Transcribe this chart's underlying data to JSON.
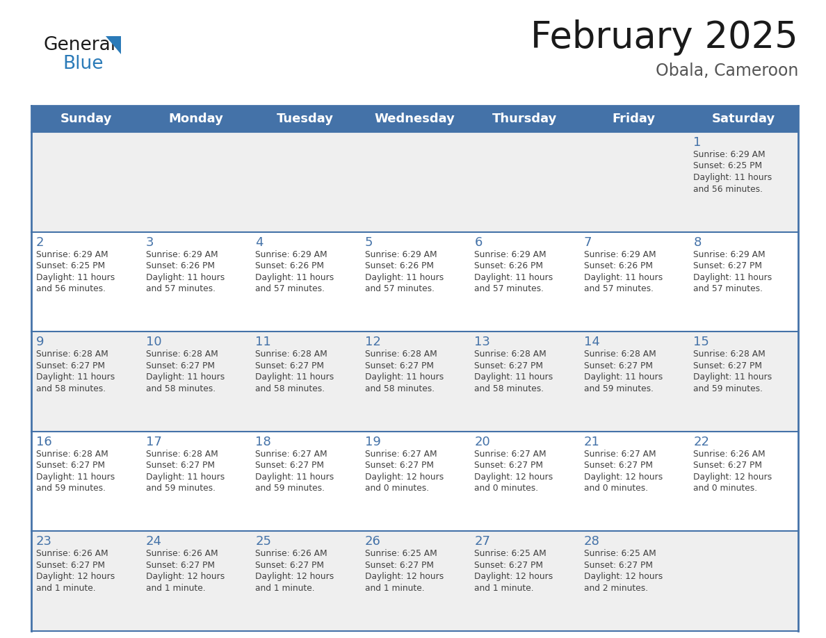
{
  "title": "February 2025",
  "subtitle": "Obala, Cameroon",
  "days_of_week": [
    "Sunday",
    "Monday",
    "Tuesday",
    "Wednesday",
    "Thursday",
    "Friday",
    "Saturday"
  ],
  "header_bg": "#4472a8",
  "header_text": "#ffffff",
  "cell_bg_odd": "#efefef",
  "cell_bg_even": "#ffffff",
  "day_number_color": "#4472a8",
  "text_color": "#404040",
  "border_color": "#4472a8",
  "title_color": "#1a1a1a",
  "subtitle_color": "#555555",
  "logo_black": "#1a1a1a",
  "logo_blue": "#2a7ab8",
  "calendar_data": [
    [
      {
        "day": null,
        "sunrise": null,
        "sunset": null,
        "daylight_line1": null,
        "daylight_line2": null
      },
      {
        "day": null,
        "sunrise": null,
        "sunset": null,
        "daylight_line1": null,
        "daylight_line2": null
      },
      {
        "day": null,
        "sunrise": null,
        "sunset": null,
        "daylight_line1": null,
        "daylight_line2": null
      },
      {
        "day": null,
        "sunrise": null,
        "sunset": null,
        "daylight_line1": null,
        "daylight_line2": null
      },
      {
        "day": null,
        "sunrise": null,
        "sunset": null,
        "daylight_line1": null,
        "daylight_line2": null
      },
      {
        "day": null,
        "sunrise": null,
        "sunset": null,
        "daylight_line1": null,
        "daylight_line2": null
      },
      {
        "day": "1",
        "sunrise": "Sunrise: 6:29 AM",
        "sunset": "Sunset: 6:25 PM",
        "daylight_line1": "Daylight: 11 hours",
        "daylight_line2": "and 56 minutes."
      }
    ],
    [
      {
        "day": "2",
        "sunrise": "Sunrise: 6:29 AM",
        "sunset": "Sunset: 6:25 PM",
        "daylight_line1": "Daylight: 11 hours",
        "daylight_line2": "and 56 minutes."
      },
      {
        "day": "3",
        "sunrise": "Sunrise: 6:29 AM",
        "sunset": "Sunset: 6:26 PM",
        "daylight_line1": "Daylight: 11 hours",
        "daylight_line2": "and 57 minutes."
      },
      {
        "day": "4",
        "sunrise": "Sunrise: 6:29 AM",
        "sunset": "Sunset: 6:26 PM",
        "daylight_line1": "Daylight: 11 hours",
        "daylight_line2": "and 57 minutes."
      },
      {
        "day": "5",
        "sunrise": "Sunrise: 6:29 AM",
        "sunset": "Sunset: 6:26 PM",
        "daylight_line1": "Daylight: 11 hours",
        "daylight_line2": "and 57 minutes."
      },
      {
        "day": "6",
        "sunrise": "Sunrise: 6:29 AM",
        "sunset": "Sunset: 6:26 PM",
        "daylight_line1": "Daylight: 11 hours",
        "daylight_line2": "and 57 minutes."
      },
      {
        "day": "7",
        "sunrise": "Sunrise: 6:29 AM",
        "sunset": "Sunset: 6:26 PM",
        "daylight_line1": "Daylight: 11 hours",
        "daylight_line2": "and 57 minutes."
      },
      {
        "day": "8",
        "sunrise": "Sunrise: 6:29 AM",
        "sunset": "Sunset: 6:27 PM",
        "daylight_line1": "Daylight: 11 hours",
        "daylight_line2": "and 57 minutes."
      }
    ],
    [
      {
        "day": "9",
        "sunrise": "Sunrise: 6:28 AM",
        "sunset": "Sunset: 6:27 PM",
        "daylight_line1": "Daylight: 11 hours",
        "daylight_line2": "and 58 minutes."
      },
      {
        "day": "10",
        "sunrise": "Sunrise: 6:28 AM",
        "sunset": "Sunset: 6:27 PM",
        "daylight_line1": "Daylight: 11 hours",
        "daylight_line2": "and 58 minutes."
      },
      {
        "day": "11",
        "sunrise": "Sunrise: 6:28 AM",
        "sunset": "Sunset: 6:27 PM",
        "daylight_line1": "Daylight: 11 hours",
        "daylight_line2": "and 58 minutes."
      },
      {
        "day": "12",
        "sunrise": "Sunrise: 6:28 AM",
        "sunset": "Sunset: 6:27 PM",
        "daylight_line1": "Daylight: 11 hours",
        "daylight_line2": "and 58 minutes."
      },
      {
        "day": "13",
        "sunrise": "Sunrise: 6:28 AM",
        "sunset": "Sunset: 6:27 PM",
        "daylight_line1": "Daylight: 11 hours",
        "daylight_line2": "and 58 minutes."
      },
      {
        "day": "14",
        "sunrise": "Sunrise: 6:28 AM",
        "sunset": "Sunset: 6:27 PM",
        "daylight_line1": "Daylight: 11 hours",
        "daylight_line2": "and 59 minutes."
      },
      {
        "day": "15",
        "sunrise": "Sunrise: 6:28 AM",
        "sunset": "Sunset: 6:27 PM",
        "daylight_line1": "Daylight: 11 hours",
        "daylight_line2": "and 59 minutes."
      }
    ],
    [
      {
        "day": "16",
        "sunrise": "Sunrise: 6:28 AM",
        "sunset": "Sunset: 6:27 PM",
        "daylight_line1": "Daylight: 11 hours",
        "daylight_line2": "and 59 minutes."
      },
      {
        "day": "17",
        "sunrise": "Sunrise: 6:28 AM",
        "sunset": "Sunset: 6:27 PM",
        "daylight_line1": "Daylight: 11 hours",
        "daylight_line2": "and 59 minutes."
      },
      {
        "day": "18",
        "sunrise": "Sunrise: 6:27 AM",
        "sunset": "Sunset: 6:27 PM",
        "daylight_line1": "Daylight: 11 hours",
        "daylight_line2": "and 59 minutes."
      },
      {
        "day": "19",
        "sunrise": "Sunrise: 6:27 AM",
        "sunset": "Sunset: 6:27 PM",
        "daylight_line1": "Daylight: 12 hours",
        "daylight_line2": "and 0 minutes."
      },
      {
        "day": "20",
        "sunrise": "Sunrise: 6:27 AM",
        "sunset": "Sunset: 6:27 PM",
        "daylight_line1": "Daylight: 12 hours",
        "daylight_line2": "and 0 minutes."
      },
      {
        "day": "21",
        "sunrise": "Sunrise: 6:27 AM",
        "sunset": "Sunset: 6:27 PM",
        "daylight_line1": "Daylight: 12 hours",
        "daylight_line2": "and 0 minutes."
      },
      {
        "day": "22",
        "sunrise": "Sunrise: 6:26 AM",
        "sunset": "Sunset: 6:27 PM",
        "daylight_line1": "Daylight: 12 hours",
        "daylight_line2": "and 0 minutes."
      }
    ],
    [
      {
        "day": "23",
        "sunrise": "Sunrise: 6:26 AM",
        "sunset": "Sunset: 6:27 PM",
        "daylight_line1": "Daylight: 12 hours",
        "daylight_line2": "and 1 minute."
      },
      {
        "day": "24",
        "sunrise": "Sunrise: 6:26 AM",
        "sunset": "Sunset: 6:27 PM",
        "daylight_line1": "Daylight: 12 hours",
        "daylight_line2": "and 1 minute."
      },
      {
        "day": "25",
        "sunrise": "Sunrise: 6:26 AM",
        "sunset": "Sunset: 6:27 PM",
        "daylight_line1": "Daylight: 12 hours",
        "daylight_line2": "and 1 minute."
      },
      {
        "day": "26",
        "sunrise": "Sunrise: 6:25 AM",
        "sunset": "Sunset: 6:27 PM",
        "daylight_line1": "Daylight: 12 hours",
        "daylight_line2": "and 1 minute."
      },
      {
        "day": "27",
        "sunrise": "Sunrise: 6:25 AM",
        "sunset": "Sunset: 6:27 PM",
        "daylight_line1": "Daylight: 12 hours",
        "daylight_line2": "and 1 minute."
      },
      {
        "day": "28",
        "sunrise": "Sunrise: 6:25 AM",
        "sunset": "Sunset: 6:27 PM",
        "daylight_line1": "Daylight: 12 hours",
        "daylight_line2": "and 2 minutes."
      },
      {
        "day": null,
        "sunrise": null,
        "sunset": null,
        "daylight_line1": null,
        "daylight_line2": null
      }
    ]
  ]
}
